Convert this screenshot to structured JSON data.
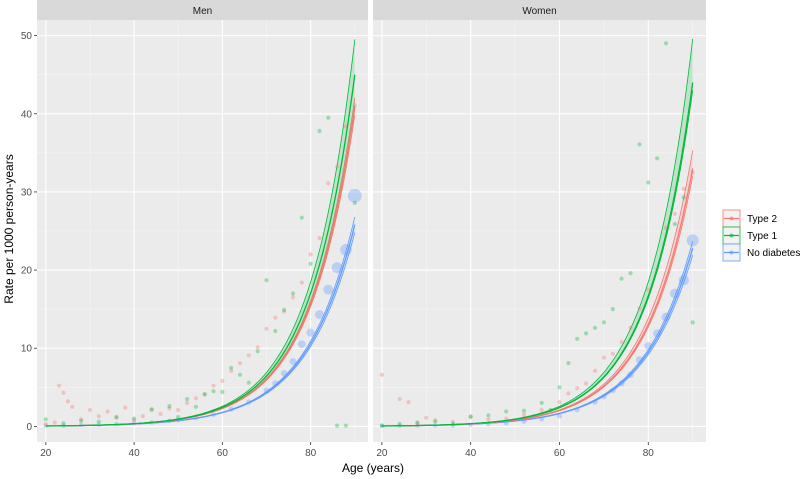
{
  "chart_data": {
    "type": "line",
    "xlabel": "Age (years)",
    "ylabel": "Rate per 1000 person-years",
    "xlim": [
      18,
      93
    ],
    "ylim": [
      -2,
      52
    ],
    "x_ticks": [
      20,
      40,
      60,
      80
    ],
    "y_ticks": [
      0,
      10,
      20,
      30,
      40,
      50
    ],
    "grid": true,
    "legend_position": "right",
    "legend": [
      {
        "key": "type2",
        "label": "Type 2",
        "color": "#F8766D"
      },
      {
        "key": "type1",
        "label": "Type 1",
        "color": "#00BA38"
      },
      {
        "key": "nodiab",
        "label": "No diabetes",
        "color": "#619CFF"
      }
    ],
    "panels": [
      {
        "title": "Men",
        "fits": {
          "type2": {
            "x_max": 90,
            "fit_end": 40.8,
            "band_end": [
              39.8,
              42.0
            ]
          },
          "type1": {
            "x_max": 90,
            "fit_end": 45.0,
            "band_end": [
              41.0,
              49.5
            ]
          },
          "nodiab": {
            "x_max": 90,
            "fit_end": 25.8,
            "band_end": [
              24.8,
              26.8
            ]
          }
        },
        "points": {
          "type2": [
            [
              20,
              0.3
            ],
            [
              22,
              0.5
            ],
            [
              23,
              5.2
            ],
            [
              24,
              4.3
            ],
            [
              25,
              3.2
            ],
            [
              26,
              2.5
            ],
            [
              28,
              0.9
            ],
            [
              30,
              2.1
            ],
            [
              32,
              1.3
            ],
            [
              34,
              1.9
            ],
            [
              36,
              1.1
            ],
            [
              38,
              2.4
            ],
            [
              40,
              0.8
            ],
            [
              42,
              1.3
            ],
            [
              44,
              2.1
            ],
            [
              46,
              1.6
            ],
            [
              48,
              2.3
            ],
            [
              50,
              2.1
            ],
            [
              52,
              3.0
            ],
            [
              54,
              3.6
            ],
            [
              56,
              4.1
            ],
            [
              58,
              5.2
            ],
            [
              60,
              5.8
            ],
            [
              62,
              7.1
            ],
            [
              64,
              8.1
            ],
            [
              66,
              9.1
            ],
            [
              68,
              10.1
            ],
            [
              70,
              12.5
            ],
            [
              72,
              13.9
            ],
            [
              74,
              14.7
            ],
            [
              76,
              16.5
            ],
            [
              78,
              18.4
            ],
            [
              80,
              22.0
            ],
            [
              82,
              24.1
            ],
            [
              84,
              31.1
            ],
            [
              86,
              33.2
            ],
            [
              88,
              38.4
            ],
            [
              90,
              41.1
            ]
          ],
          "type1": [
            [
              20,
              0.9
            ],
            [
              24,
              0.4
            ],
            [
              28,
              0.7
            ],
            [
              32,
              0.6
            ],
            [
              36,
              1.2
            ],
            [
              40,
              1.0
            ],
            [
              44,
              2.2
            ],
            [
              48,
              2.6
            ],
            [
              50,
              1.2
            ],
            [
              52,
              3.5
            ],
            [
              54,
              2.5
            ],
            [
              56,
              4.1
            ],
            [
              58,
              4.5
            ],
            [
              60,
              4.4
            ],
            [
              62,
              7.5
            ],
            [
              64,
              6.6
            ],
            [
              66,
              5.6
            ],
            [
              68,
              9.6
            ],
            [
              70,
              18.7
            ],
            [
              72,
              12.2
            ],
            [
              74,
              14.9
            ],
            [
              76,
              17.0
            ],
            [
              78,
              26.7
            ],
            [
              80,
              20.8
            ],
            [
              82,
              37.8
            ],
            [
              84,
              39.5
            ],
            [
              86,
              0.1
            ],
            [
              88,
              0.1
            ],
            [
              90,
              28.6
            ]
          ],
          "nodiab": [
            [
              20,
              0.1
            ],
            [
              24,
              0.1
            ],
            [
              28,
              0.2
            ],
            [
              32,
              0.2
            ],
            [
              36,
              0.3
            ],
            [
              40,
              0.4
            ],
            [
              44,
              0.5
            ],
            [
              48,
              0.7
            ],
            [
              50,
              0.8
            ],
            [
              54,
              1.1
            ],
            [
              58,
              1.5
            ],
            [
              62,
              2.2
            ],
            [
              66,
              3.1
            ],
            [
              70,
              4.6
            ],
            [
              72,
              5.5
            ],
            [
              74,
              6.8
            ],
            [
              76,
              8.3
            ],
            [
              78,
              10.5
            ],
            [
              80,
              12.0
            ],
            [
              82,
              14.3
            ],
            [
              84,
              17.5
            ],
            [
              86,
              20.3
            ],
            [
              88,
              22.6
            ],
            [
              90,
              29.5
            ]
          ]
        }
      },
      {
        "title": "Women",
        "fits": {
          "type2": {
            "x_max": 90,
            "fit_end": 33.0,
            "band_end": [
              32.0,
              35.3
            ]
          },
          "type1": {
            "x_max": 90,
            "fit_end": 44.0,
            "band_end": [
              43.0,
              49.6
            ]
          },
          "nodiab": {
            "x_max": 90,
            "fit_end": 22.8,
            "band_end": [
              21.9,
              23.7
            ]
          }
        },
        "points": {
          "type2": [
            [
              20,
              6.6
            ],
            [
              24,
              3.5
            ],
            [
              26,
              3.1
            ],
            [
              28,
              0.4
            ],
            [
              30,
              1.1
            ],
            [
              32,
              0.8
            ],
            [
              36,
              0.6
            ],
            [
              40,
              1.3
            ],
            [
              44,
              0.9
            ],
            [
              48,
              1.0
            ],
            [
              52,
              1.5
            ],
            [
              56,
              2.1
            ],
            [
              60,
              3.1
            ],
            [
              62,
              4.2
            ],
            [
              64,
              4.9
            ],
            [
              66,
              5.5
            ],
            [
              68,
              7.1
            ],
            [
              70,
              8.8
            ],
            [
              72,
              9.3
            ],
            [
              74,
              10.8
            ],
            [
              76,
              12.6
            ],
            [
              78,
              15.1
            ],
            [
              80,
              17.5
            ],
            [
              82,
              20.1
            ],
            [
              84,
              25.4
            ],
            [
              86,
              27.2
            ],
            [
              88,
              30.4
            ],
            [
              90,
              32.5
            ]
          ],
          "type1": [
            [
              20,
              0.1
            ],
            [
              24,
              0.3
            ],
            [
              28,
              0.5
            ],
            [
              32,
              0.6
            ],
            [
              36,
              0.3
            ],
            [
              40,
              1.2
            ],
            [
              44,
              1.4
            ],
            [
              48,
              1.9
            ],
            [
              52,
              2.0
            ],
            [
              56,
              3.0
            ],
            [
              58,
              2.1
            ],
            [
              60,
              5.0
            ],
            [
              62,
              8.1
            ],
            [
              64,
              11.2
            ],
            [
              66,
              11.9
            ],
            [
              68,
              12.6
            ],
            [
              70,
              13.3
            ],
            [
              72,
              15.0
            ],
            [
              74,
              18.9
            ],
            [
              76,
              19.6
            ],
            [
              78,
              36.1
            ],
            [
              80,
              31.2
            ],
            [
              82,
              34.3
            ],
            [
              84,
              49.0
            ],
            [
              86,
              25.9
            ],
            [
              88,
              29.3
            ],
            [
              90,
              13.3
            ]
          ],
          "nodiab": [
            [
              20,
              0.1
            ],
            [
              24,
              0.1
            ],
            [
              28,
              0.1
            ],
            [
              32,
              0.1
            ],
            [
              36,
              0.1
            ],
            [
              40,
              0.2
            ],
            [
              44,
              0.3
            ],
            [
              48,
              0.4
            ],
            [
              52,
              0.6
            ],
            [
              56,
              0.9
            ],
            [
              60,
              1.3
            ],
            [
              64,
              2.1
            ],
            [
              68,
              3.1
            ],
            [
              70,
              3.8
            ],
            [
              72,
              4.6
            ],
            [
              74,
              5.5
            ],
            [
              76,
              6.6
            ],
            [
              78,
              8.5
            ],
            [
              80,
              10.3
            ],
            [
              82,
              11.9
            ],
            [
              84,
              14.0
            ],
            [
              86,
              17.0
            ],
            [
              88,
              18.7
            ],
            [
              90,
              23.8
            ]
          ]
        }
      }
    ]
  }
}
